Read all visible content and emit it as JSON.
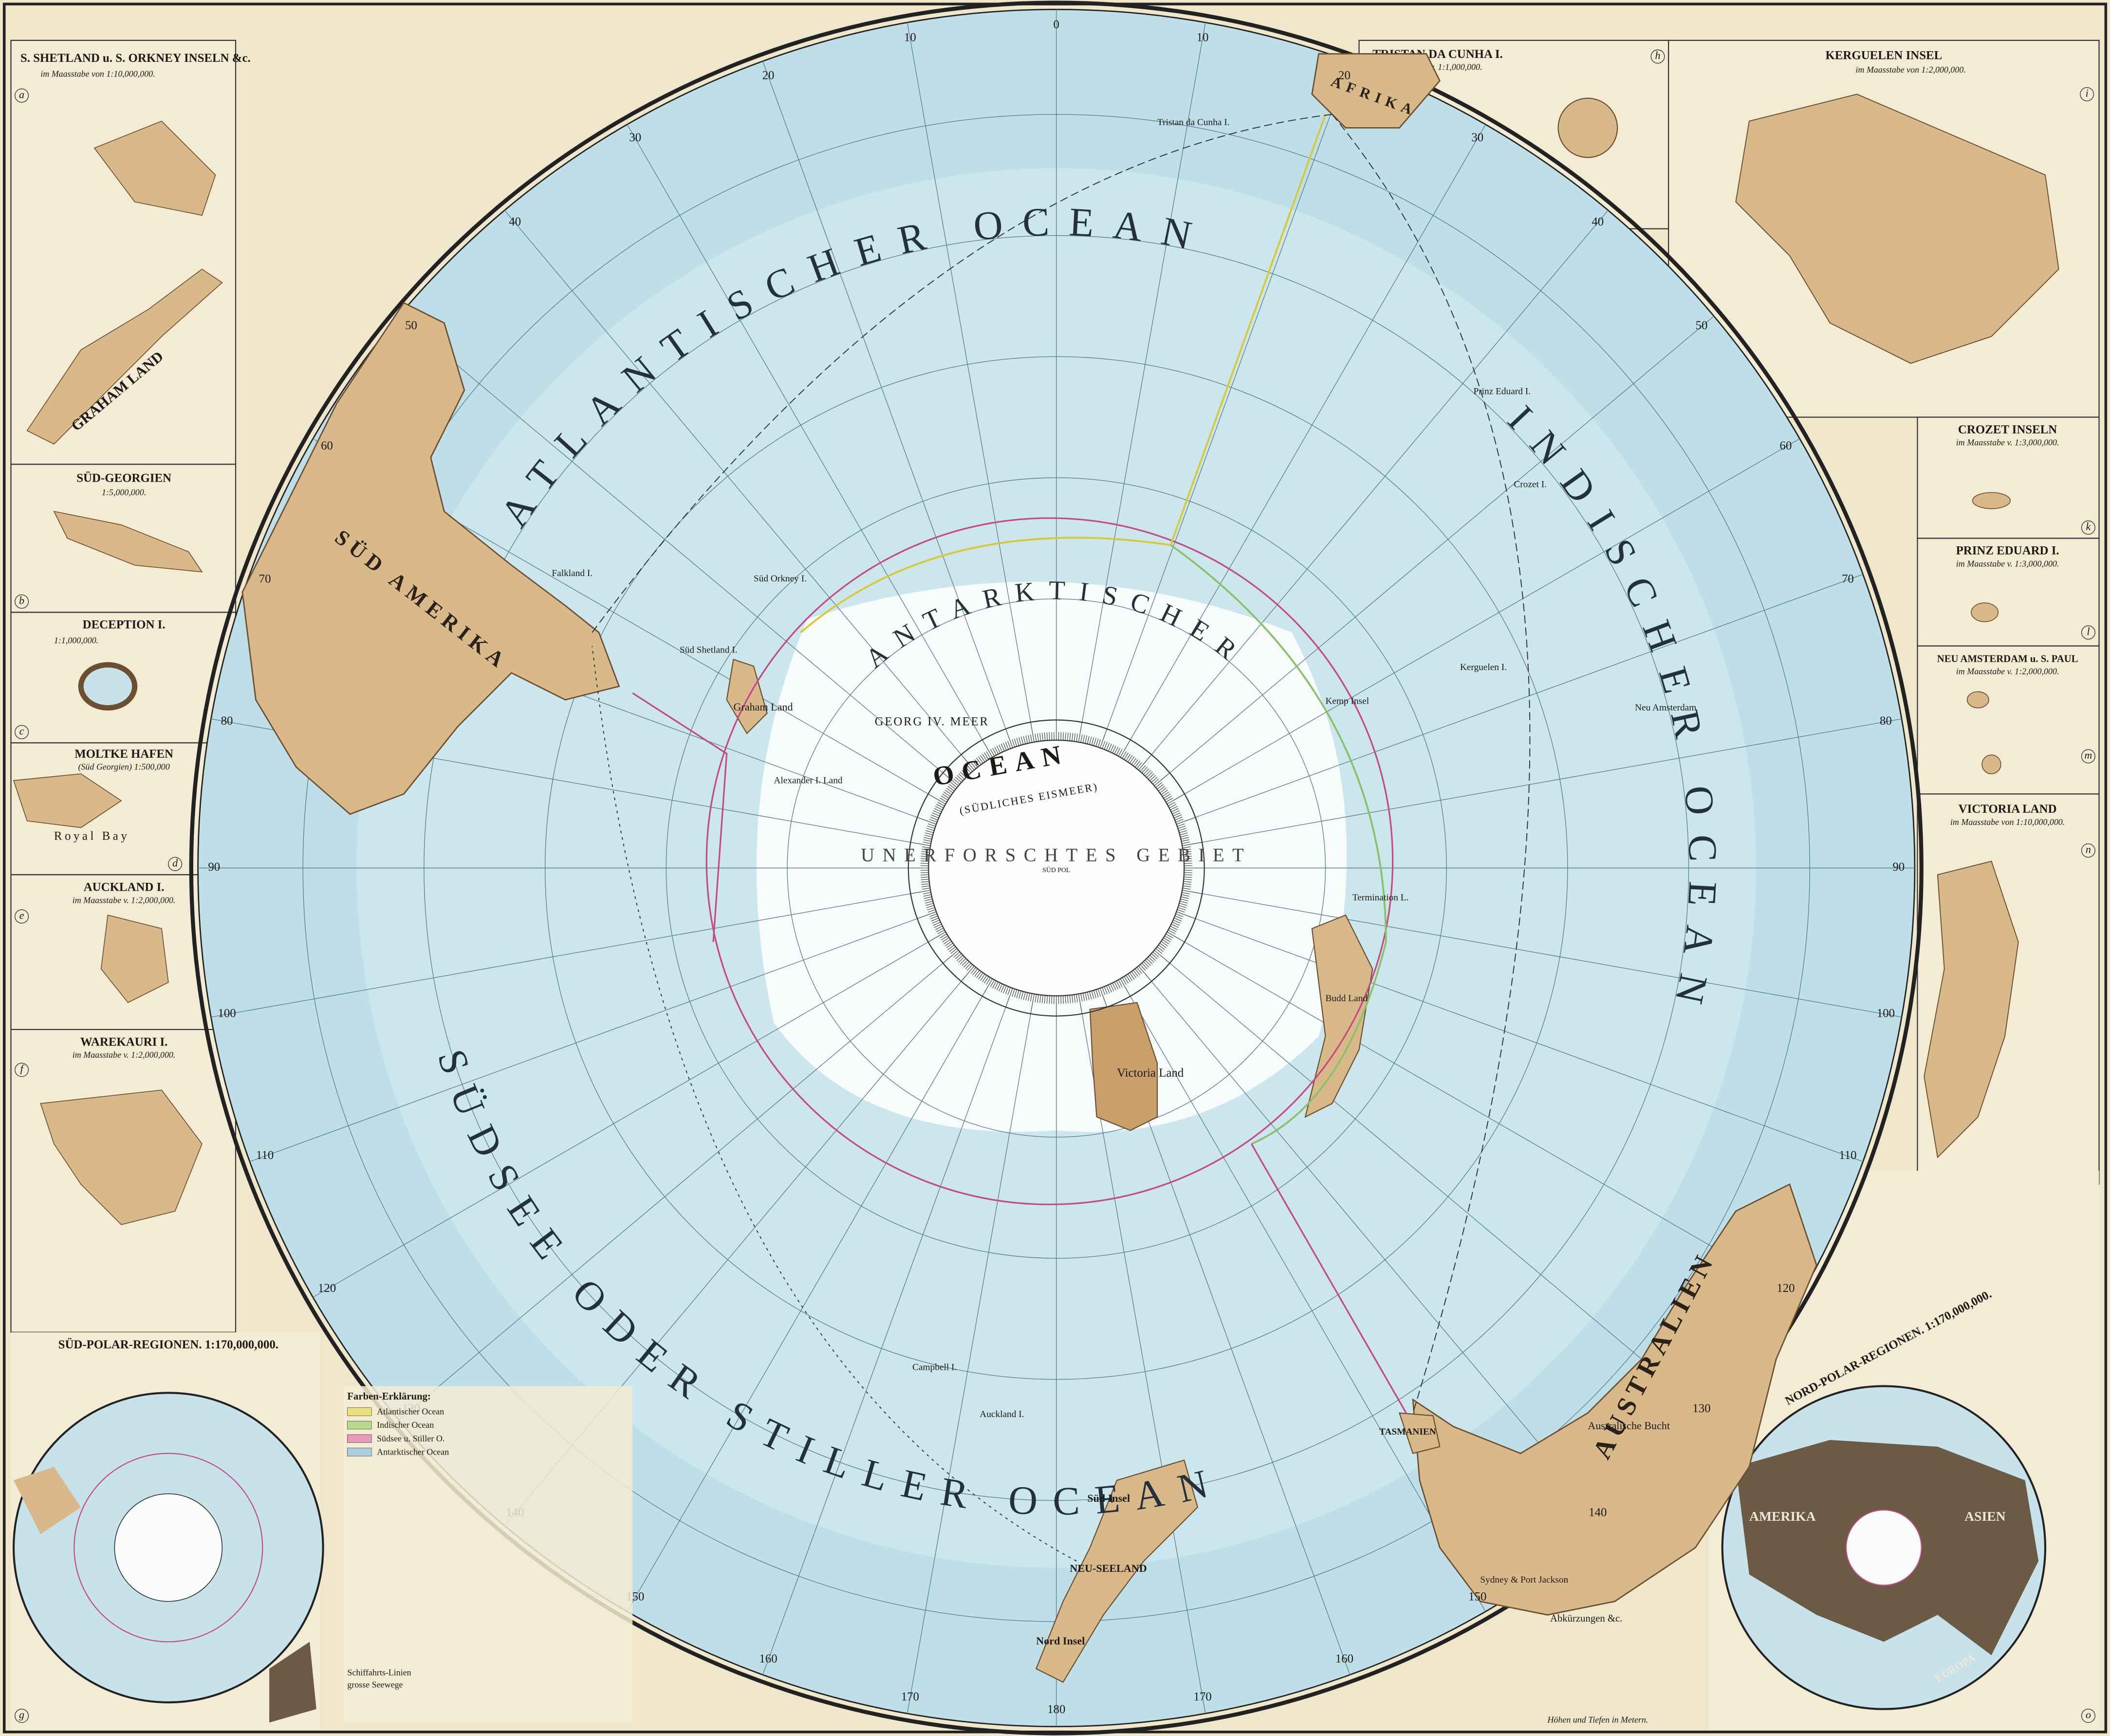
{
  "main_map": {
    "oceans": {
      "atlantic": "ATLANTISCHER OCEAN",
      "indian": "INDISCHER OCEAN",
      "pacific": "SÜDSEE ODER STILLER OCEAN",
      "antarctic": "ANTARKTISCHER",
      "antarctic_ocean": "OCEAN",
      "antarctic_sub": "(SÜDLICHES EISMEER)",
      "unexplored": "UNERFORSCHTES GEBIET"
    },
    "continents": {
      "south_america": "SÜD AMERIKA",
      "africa": "AFRIKA",
      "australia": "AUSTRALIEN"
    },
    "places": {
      "neu_seeland": "NEU-SEELAND",
      "tasmanien": "TASMANIEN",
      "victoria_land": "Victoria Land",
      "graham_land": "Graham Land",
      "alexander_land": "Alexander I. Land",
      "georg_meer": "GEORG IV. MEER",
      "falkland": "Falkland I.",
      "sued_orkney": "Süd Orkney I.",
      "sued_shetland": "Süd Shetland I.",
      "kerguelen": "Kerguelen I.",
      "crozet": "Crozet I.",
      "prinz_eduard": "Prinz Eduard I.",
      "tristan": "Tristan da Cunha I.",
      "neu_amsterdam": "Neu Amsterdam",
      "kemp": "Kemp Insel",
      "termination": "Termination L.",
      "budd": "Budd Land",
      "campbell": "Campbell I.",
      "auckland": "Auckland I.",
      "sued_insel": "Süd Insel",
      "nord_insel": "Nord Insel",
      "sydney": "Sydney & Port Jackson",
      "bucht": "Australische Bucht",
      "pol": "SÜD POL"
    },
    "meridian_labels": [
      "0",
      "10",
      "20",
      "30",
      "40",
      "50",
      "60",
      "70",
      "80",
      "90",
      "100",
      "110",
      "120",
      "130",
      "140",
      "150",
      "160",
      "170",
      "180",
      "170",
      "160",
      "150",
      "140",
      "130",
      "120",
      "110",
      "100",
      "90",
      "80",
      "70",
      "60",
      "50",
      "40",
      "30",
      "20",
      "10"
    ]
  },
  "insets": {
    "a": {
      "letter": "a",
      "title": "S. SHETLAND u. S. ORKNEY INSELN &c.",
      "scale": "im Maasstabe von 1:10,000,000.",
      "label": "GRAHAM LAND"
    },
    "b": {
      "letter": "b",
      "title": "SÜD-GEORGIEN",
      "scale": "1:5,000,000."
    },
    "c": {
      "letter": "c",
      "title": "DECEPTION I.",
      "scale": "1:1,000,000."
    },
    "d": {
      "letter": "d",
      "title": "MOLTKE HAFEN",
      "scale": "(Süd Georgien) 1:500,000",
      "label": "Royal Bay"
    },
    "e": {
      "letter": "e",
      "title": "AUCKLAND I.",
      "scale": "im Maasstabe v. 1:2,000,000."
    },
    "f": {
      "letter": "f",
      "title": "WAREKAURI I.",
      "scale": "im Maasstabe v. 1:2,000,000."
    },
    "g": {
      "letter": "g",
      "title": "SÜD-POLAR-REGIONEN. 1:170,000,000."
    },
    "h": {
      "letter": "h",
      "title": "TRISTAN DA CUNHA I.",
      "scale": "im Maasstabe v. 1:1,000,000."
    },
    "i": {
      "letter": "i",
      "title": "KERGUELEN INSEL",
      "scale": "im Maasstabe von 1:2,000,000."
    },
    "k": {
      "letter": "k",
      "title": "CROZET INSELN",
      "scale": "im Maasstabe v. 1:3,000,000."
    },
    "l": {
      "letter": "l",
      "title": "PRINZ EDUARD I.",
      "scale": "im Maasstabe v. 1:3,000,000."
    },
    "m": {
      "letter": "m",
      "title": "NEU AMSTERDAM u. S. PAUL",
      "scale": "im Maasstabe v. 1:2,000,000."
    },
    "n": {
      "letter": "n",
      "title": "VICTORIA LAND",
      "scale": "im Maasstabe von 1:10,000,000."
    },
    "o": {
      "letter": "o",
      "title": "NORD-POLAR-REGIONEN. 1:170,000,000.",
      "labels": [
        "AMERIKA",
        "ASIEN",
        "EUROPA"
      ]
    }
  },
  "legend": {
    "title": "Farben-Erklärung:",
    "items": [
      {
        "name": "Atlantischer Ocean",
        "color": "#e9e27a"
      },
      {
        "name": "Indischer Ocean",
        "color": "#b7d98a"
      },
      {
        "name": "Südsee u. Stiller O.",
        "color": "#e79ab8"
      },
      {
        "name": "Antarktischer Ocean",
        "color": "#a9cfe0"
      }
    ],
    "shipping": "Schiffahrts-Linien",
    "seaways": "grosse Seewege",
    "abbreviations": "Abkürzungen &c.",
    "note": "Höhen und Tiefen in Metern."
  }
}
